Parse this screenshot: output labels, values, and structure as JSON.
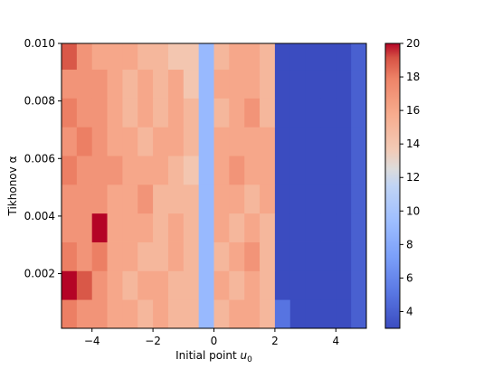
{
  "chart_data": {
    "type": "heatmap",
    "title": "",
    "xlabel": "Initial point",
    "xlabel_symbol": "u",
    "xlabel_subscript": "0",
    "ylabel": "Tikhonov α",
    "xlim": [
      -5,
      5
    ],
    "ylim": [
      0.0001,
      0.01
    ],
    "x_ticks": [
      -4,
      -2,
      0,
      2,
      4
    ],
    "x_tick_labels": [
      "−4",
      "−2",
      "0",
      "2",
      "4"
    ],
    "y_ticks": [
      0.002,
      0.004,
      0.006,
      0.008,
      0.01
    ],
    "y_tick_labels": [
      "0.002",
      "0.004",
      "0.006",
      "0.008",
      "0.010"
    ],
    "colorbar": {
      "range": [
        3,
        20
      ],
      "ticks": [
        4,
        6,
        8,
        10,
        12,
        14,
        16,
        18,
        20
      ],
      "tick_labels": [
        "4",
        "6",
        "8",
        "10",
        "12",
        "14",
        "16",
        "18",
        "20"
      ],
      "colormap": "coolwarm"
    },
    "x_bins": [
      -5.0,
      -4.5,
      -4.0,
      -3.5,
      -3.0,
      -2.5,
      -2.0,
      -1.5,
      -1.0,
      -0.5,
      0.0,
      0.5,
      1.0,
      1.5,
      2.0,
      2.5,
      3.0,
      3.5,
      4.0,
      4.5,
      5.0
    ],
    "y_bins": [
      0.0001,
      0.0011,
      0.0021,
      0.0031,
      0.0041,
      0.0051,
      0.0061,
      0.0071,
      0.0081,
      0.0091,
      0.01
    ],
    "values_bottom_to_top": [
      [
        18,
        17,
        17,
        16,
        16,
        15,
        16,
        15,
        15,
        9,
        15,
        16,
        16,
        15,
        5,
        3,
        3,
        3,
        3,
        4
      ],
      [
        20,
        19,
        17,
        16,
        15,
        16,
        16,
        15,
        15,
        9,
        16,
        15,
        16,
        15,
        3,
        3,
        3,
        3,
        3,
        4
      ],
      [
        18,
        17,
        18,
        16,
        16,
        15,
        15,
        16,
        15,
        9,
        15,
        16,
        17,
        15,
        3,
        3,
        3,
        3,
        3,
        4
      ],
      [
        17,
        17,
        20,
        16,
        16,
        16,
        15,
        16,
        15,
        9,
        16,
        15,
        16,
        15,
        3,
        3,
        3,
        3,
        3,
        4
      ],
      [
        17,
        17,
        17,
        16,
        16,
        17,
        15,
        15,
        15,
        9,
        16,
        16,
        15,
        16,
        3,
        3,
        3,
        3,
        3,
        4
      ],
      [
        18,
        17,
        17,
        17,
        16,
        16,
        16,
        15,
        14,
        9,
        16,
        17,
        16,
        16,
        3,
        3,
        3,
        3,
        3,
        4
      ],
      [
        17,
        18,
        17,
        16,
        16,
        15,
        16,
        16,
        15,
        9,
        16,
        16,
        16,
        16,
        3,
        3,
        3,
        3,
        3,
        4
      ],
      [
        18,
        17,
        17,
        16,
        15,
        16,
        15,
        16,
        15,
        9,
        15,
        16,
        17,
        15,
        3,
        3,
        3,
        3,
        3,
        4
      ],
      [
        17,
        17,
        17,
        16,
        15,
        16,
        15,
        16,
        14,
        9,
        16,
        16,
        16,
        15,
        3,
        3,
        3,
        3,
        3,
        4
      ],
      [
        19,
        17,
        16,
        16,
        16,
        15,
        15,
        14,
        14,
        9,
        15,
        16,
        16,
        15,
        3,
        3,
        3,
        3,
        3,
        4
      ]
    ]
  }
}
